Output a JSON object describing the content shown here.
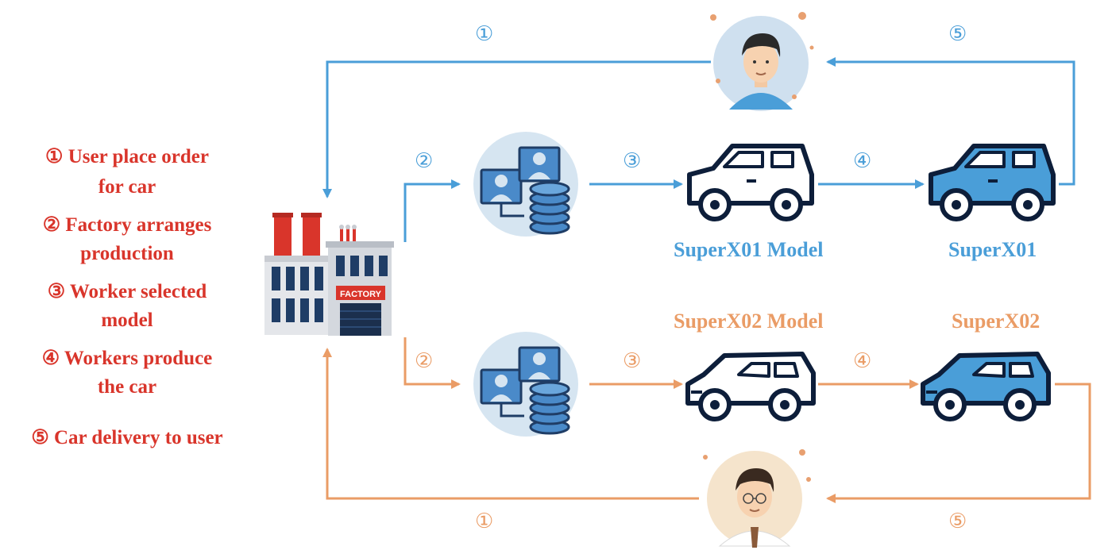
{
  "legend": [
    {
      "line1": "① User place order",
      "line2": "for car"
    },
    {
      "line1": "② Factory arranges",
      "line2": "production"
    },
    {
      "line1": "③ Worker selected",
      "line2": "model"
    },
    {
      "line1": "④ Workers produce",
      "line2": "the car"
    },
    {
      "line1": "⑤ Car delivery to user",
      "line2": ""
    }
  ],
  "steps": {
    "s1": "①",
    "s2": "②",
    "s3": "③",
    "s4": "④",
    "s5": "⑤"
  },
  "blue_row": {
    "model_label": "SuperX01 Model",
    "car_label": "SuperX01"
  },
  "orange_row": {
    "model_label": "SuperX02 Model",
    "car_label": "SuperX02"
  },
  "factory": {
    "sign": "FACTORY"
  },
  "colors": {
    "blue": "#4a9ed8",
    "orange": "#ea9c66",
    "legend_red": "#d9352b",
    "outline": "#0d1e3a"
  },
  "icons": [
    "factory-icon",
    "user-avatar-icon",
    "worker-group-icon",
    "coin-stack-icon",
    "car-outline-icon",
    "car-filled-icon"
  ]
}
